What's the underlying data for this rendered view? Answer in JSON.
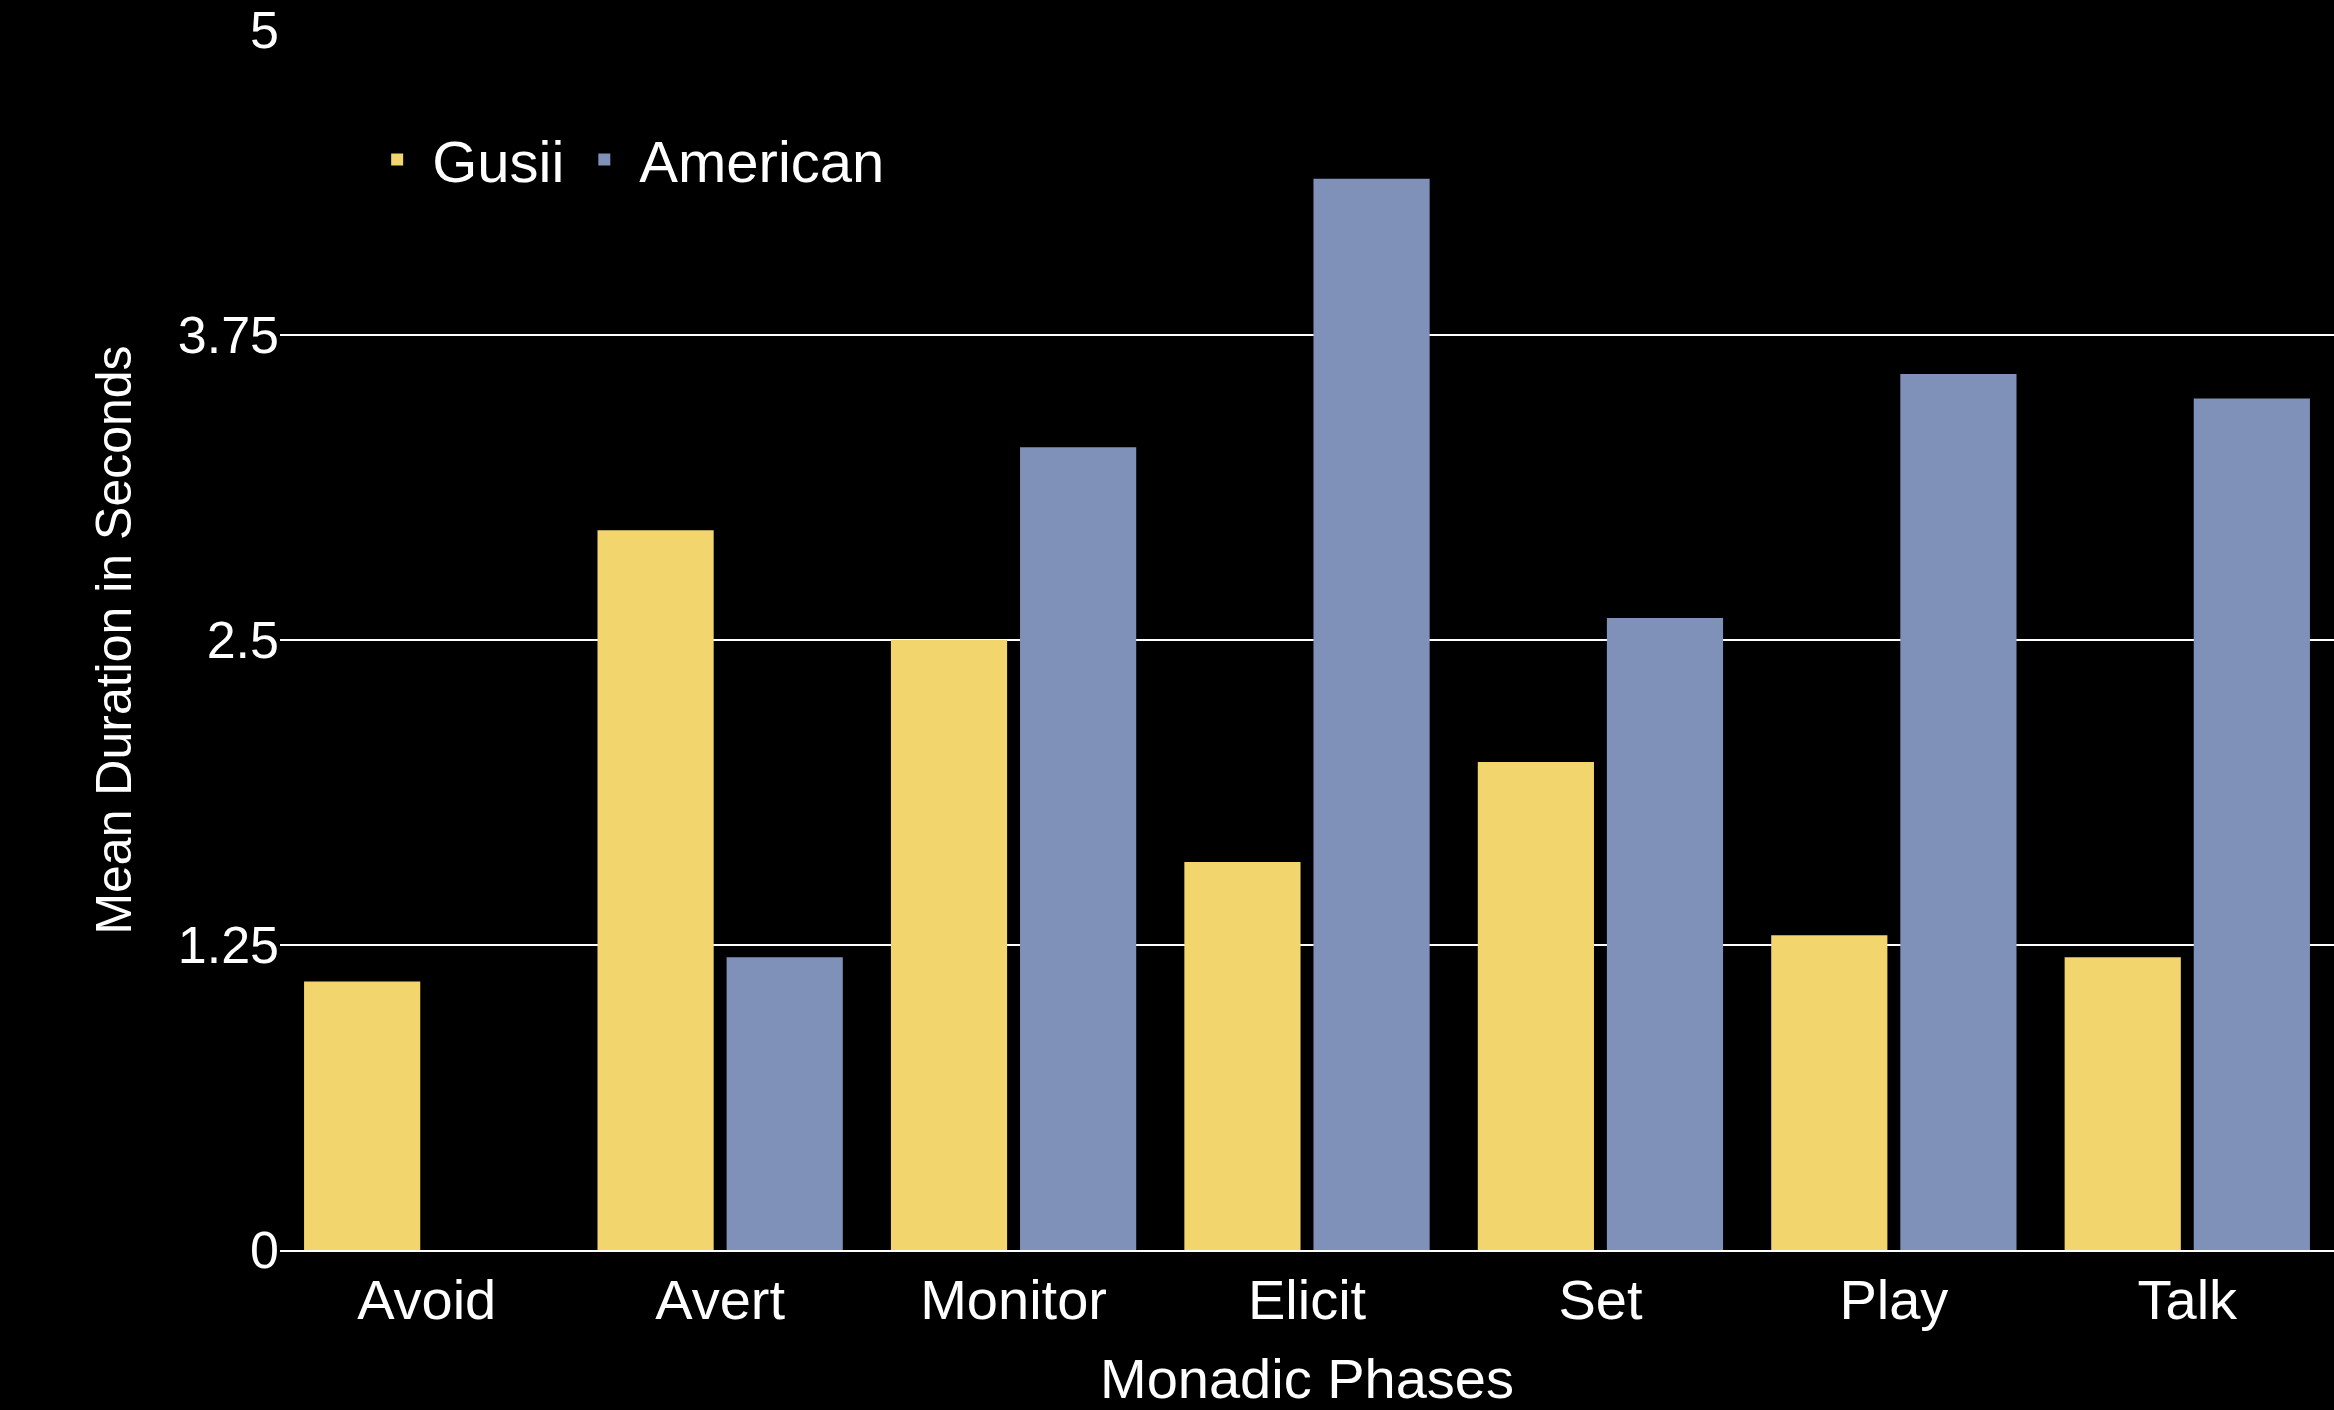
{
  "chart_data": {
    "type": "bar",
    "xlabel": "Monadic Phases",
    "ylabel": "Mean Duration in Seconds",
    "categories": [
      "Avoid",
      "Avert",
      "Monitor",
      "Elicit",
      "Set",
      "Play",
      "Talk"
    ],
    "series": [
      {
        "name": "Gusii",
        "color": "#f2d56c",
        "values": [
          1.1,
          2.95,
          2.5,
          1.59,
          2.0,
          1.29,
          1.2
        ]
      },
      {
        "name": "American",
        "color": "#7f91b8",
        "values": [
          null,
          1.2,
          3.29,
          4.39,
          2.59,
          3.59,
          3.49
        ]
      }
    ],
    "ylim": [
      0,
      5
    ],
    "yticks": [
      0,
      1.25,
      2.5,
      3.75,
      5
    ],
    "grid": "y",
    "legend": "top left"
  }
}
